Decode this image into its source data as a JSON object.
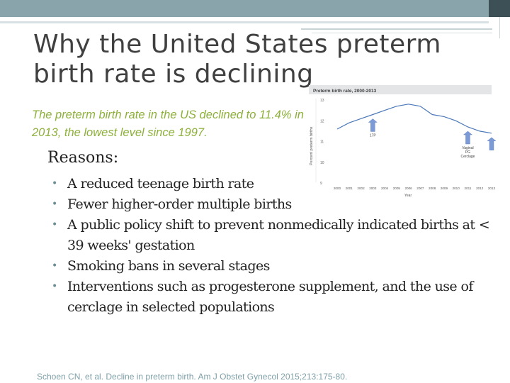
{
  "slide": {
    "title_line1": "Why the United States preterm",
    "title_line2": "birth rate is declining",
    "subtitle": "The preterm birth rate in the US declined to 11.4% in 2013, the lowest level since 1997.",
    "reasons_heading": "Reasons:",
    "bullets": [
      "A reduced teenage birth rate",
      "Fewer higher-order multiple births",
      "A public policy shift to prevent nonmedically indicated births at < 39 weeks' gestation",
      "Smoking bans in several  stages",
      "Interventions such as progesterone supplement, and the use of cerclage in selected populations"
    ],
    "citation": "Schoen CN, et al. Decline in preterm birth. Am J Obstet Gynecol 2015;213:175-80."
  },
  "colors": {
    "accent_green": "#8db03a",
    "title_gray": "#404040",
    "top_bar": "#8aa4ab",
    "line_blue": "#4a78b8",
    "arrow_blue": "#7b9ad6"
  },
  "chart_data": {
    "type": "line",
    "title": "Preterm birth rate, 2000-2013",
    "xlabel": "Year",
    "ylabel": "Percent preterm births",
    "ylim": [
      9,
      13
    ],
    "yticks": [
      9,
      10,
      11,
      12,
      13
    ],
    "categories": [
      "2000",
      "2001",
      "2002",
      "2003",
      "2004",
      "2005",
      "2006",
      "2007",
      "2008",
      "2009",
      "2010",
      "2011",
      "2012",
      "2013"
    ],
    "series": [
      {
        "values": [
          11.6,
          11.9,
          12.1,
          12.3,
          12.5,
          12.7,
          12.8,
          12.7,
          12.3,
          12.2,
          12.0,
          11.7,
          11.5,
          11.4
        ]
      }
    ],
    "annotations": [
      {
        "label": "17P",
        "x": "2003"
      },
      {
        "label": "Vaginal PG Cerclage",
        "x": "2011"
      },
      {
        "label": "",
        "x": "2013"
      }
    ],
    "grid": false
  }
}
